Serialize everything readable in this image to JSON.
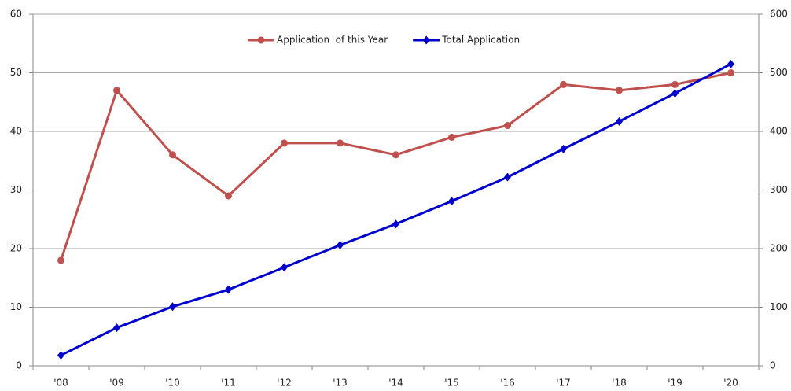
{
  "chart_data": {
    "type": "line",
    "categories": [
      "'08",
      "'09",
      "'10",
      "'11",
      "'12",
      "'13",
      "'14",
      "'15",
      "'16",
      "'17",
      "'18",
      "'19",
      "'20"
    ],
    "series": [
      {
        "name": "Application  of this Year",
        "color": "#c0504d",
        "marker": "circle",
        "values": [
          18,
          47,
          36,
          29,
          38,
          38,
          36,
          39,
          41,
          48,
          47,
          48,
          50
        ]
      },
      {
        "name": "Total Application",
        "color": "#0000cc",
        "marker": "diamond",
        "axis": "y2",
        "values": [
          18,
          65,
          101,
          130,
          168,
          206,
          242,
          281,
          322,
          370,
          417,
          465,
          515
        ]
      }
    ],
    "ylim": [
      0,
      60
    ],
    "yticks": [
      0,
      10,
      20,
      30,
      40,
      50,
      60
    ],
    "y2lim": [
      0,
      600
    ],
    "y2ticks": [
      0,
      100,
      200,
      300,
      400,
      500,
      600
    ],
    "grid": true,
    "legend": "top"
  }
}
